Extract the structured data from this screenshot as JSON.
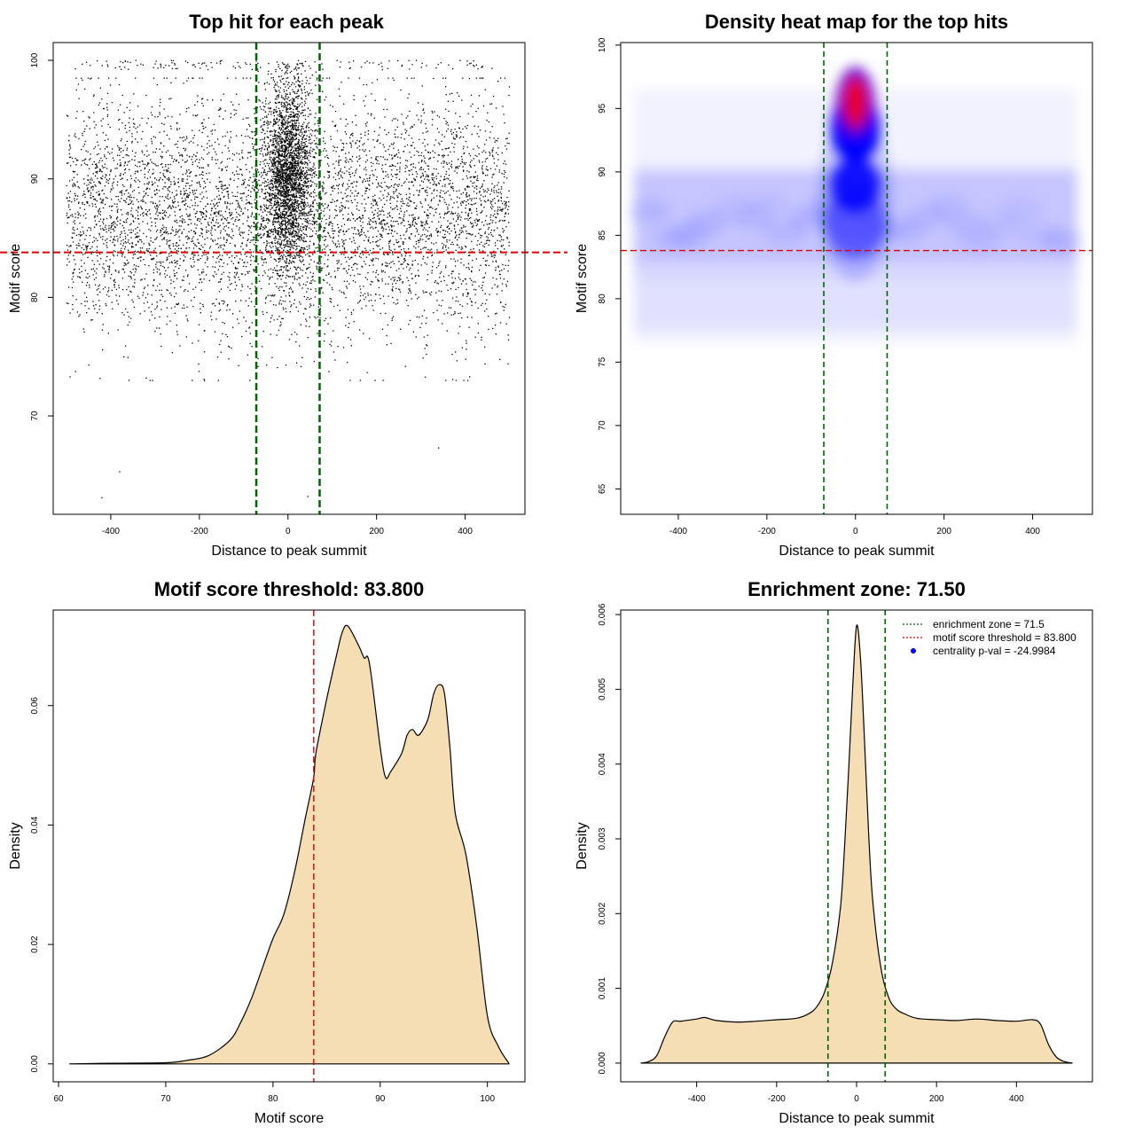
{
  "chart_data": [
    {
      "type": "scatter",
      "title": "Top hit for each peak",
      "xlabel": "Distance to peak summit",
      "ylabel": "Motif score",
      "xlim": [
        -530,
        535
      ],
      "ylim": [
        61.7,
        101.5
      ],
      "xticks": [
        -400,
        -200,
        0,
        200,
        400
      ],
      "xtick_labels": [
        "-400",
        "-200",
        "0",
        "200",
        "400"
      ],
      "yticks": [
        70,
        80,
        90,
        100
      ],
      "ytick_labels": [
        "70",
        "80",
        "90",
        "100"
      ],
      "enrichment_zone_bounds": [
        -71.5,
        71.5
      ],
      "score_threshold": 83.8,
      "colors": {
        "points": "#000000",
        "zone": "#006400",
        "threshold": "#dd0000"
      },
      "point_distribution": {
        "x_range": [
          -500,
          500
        ],
        "central_cluster": {
          "x_sd": 27,
          "y_mean": 90.5,
          "y_sd": 4.0,
          "y_max": 99.9
        },
        "background": {
          "y_mean": 87,
          "y_sd": 4.8,
          "y_range": [
            73,
            98.5
          ]
        },
        "outliers": [
          {
            "x": -420,
            "y": 63.1
          },
          {
            "x": -380,
            "y": 65.3
          },
          {
            "x": 45,
            "y": 63.2
          },
          {
            "x": 340,
            "y": 67.3
          },
          {
            "x": -492,
            "y": 73.3
          },
          {
            "x": -320,
            "y": 73.2
          },
          {
            "x": 410,
            "y": 73.3
          },
          {
            "x": 497,
            "y": 74.4
          }
        ]
      }
    },
    {
      "type": "heatmap",
      "title": "Density heat map for the top hits",
      "xlabel": "Distance to peak summit",
      "ylabel": "Motif score",
      "xlim": [
        -530,
        535
      ],
      "ylim": [
        63,
        100.2
      ],
      "xticks": [
        -400,
        -200,
        0,
        200,
        400
      ],
      "xtick_labels": [
        "-400",
        "-200",
        "0",
        "200",
        "400"
      ],
      "yticks": [
        65,
        70,
        75,
        80,
        85,
        90,
        95,
        100
      ],
      "ytick_labels": [
        "65",
        "70",
        "75",
        "80",
        "85",
        "90",
        "95",
        "100"
      ],
      "enrichment_zone_bounds": [
        -71.5,
        71.5
      ],
      "score_threshold": 83.8,
      "color_scale": [
        "#ffffff",
        "#0000ff",
        "#ff0000"
      ],
      "colors": {
        "zone": "#006400",
        "threshold": "#dd0000"
      },
      "hotspots": [
        {
          "x": 0,
          "y": 95.5,
          "weight": 1.0
        },
        {
          "x": 0,
          "y": 89,
          "weight": 0.6
        },
        {
          "x": 0,
          "y": 86,
          "weight": 0.3
        }
      ]
    },
    {
      "type": "area",
      "title": "Motif score threshold: 83.800",
      "xlabel": "Motif score",
      "ylabel": "Density",
      "xlim": [
        59.5,
        103.5
      ],
      "ylim": [
        -0.003,
        0.076
      ],
      "xticks": [
        60,
        70,
        80,
        90,
        100
      ],
      "xtick_labels": [
        "60",
        "70",
        "80",
        "90",
        "100"
      ],
      "yticks": [
        0.0,
        0.02,
        0.04,
        0.06
      ],
      "ytick_labels": [
        "0.00",
        "0.02",
        "0.04",
        "0.06"
      ],
      "threshold": 83.8,
      "colors": {
        "fill": "#f5deb3",
        "line": "#000000",
        "threshold": "#dd0000"
      },
      "x": [
        61,
        65,
        70,
        72,
        74,
        76,
        77,
        78,
        79,
        80,
        81,
        82,
        83,
        83.8,
        84,
        85,
        86,
        86.5,
        87,
        88,
        88.5,
        89,
        90,
        90.5,
        91,
        92,
        92.5,
        93,
        93.5,
        94,
        94.5,
        95,
        95.5,
        96,
        96.5,
        97,
        98,
        99,
        100,
        101,
        102
      ],
      "values": [
        0.0,
        0.0001,
        0.0002,
        0.0006,
        0.0014,
        0.004,
        0.007,
        0.011,
        0.016,
        0.021,
        0.025,
        0.032,
        0.041,
        0.048,
        0.052,
        0.061,
        0.069,
        0.0725,
        0.0733,
        0.07,
        0.068,
        0.067,
        0.053,
        0.048,
        0.049,
        0.052,
        0.055,
        0.056,
        0.055,
        0.056,
        0.058,
        0.062,
        0.0635,
        0.062,
        0.053,
        0.042,
        0.035,
        0.023,
        0.008,
        0.003,
        0.0001
      ]
    },
    {
      "type": "area",
      "title": "Enrichment zone: 71.50",
      "xlabel": "Distance to peak summit",
      "ylabel": "Density",
      "xlim": [
        -590,
        590
      ],
      "ylim": [
        -0.00025,
        0.00606
      ],
      "xticks": [
        -400,
        -200,
        0,
        200,
        400
      ],
      "xtick_labels": [
        "-400",
        "-200",
        "0",
        "200",
        "400"
      ],
      "yticks": [
        0.0,
        0.001,
        0.002,
        0.003,
        0.004,
        0.005,
        0.006
      ],
      "ytick_labels": [
        "0.000",
        "0.001",
        "0.002",
        "0.003",
        "0.004",
        "0.005",
        "0.006"
      ],
      "enrichment_zone_bounds": [
        -71.5,
        71.5
      ],
      "colors": {
        "fill": "#f5deb3",
        "line": "#000000",
        "zone": "#006400",
        "threshold": "#dd0000",
        "pval": "#0000ff"
      },
      "x": [
        -540,
        -520,
        -500,
        -480,
        -460,
        -440,
        -400,
        -380,
        -350,
        -300,
        -250,
        -200,
        -150,
        -120,
        -100,
        -80,
        -60,
        -40,
        -30,
        -20,
        -10,
        0,
        10,
        20,
        30,
        40,
        60,
        80,
        100,
        120,
        150,
        200,
        250,
        300,
        350,
        400,
        440,
        460,
        480,
        500,
        520,
        540
      ],
      "values": [
        0.0,
        2e-05,
        0.0001,
        0.00035,
        0.00055,
        0.00056,
        0.00059,
        0.00061,
        0.00057,
        0.00055,
        0.00056,
        0.00058,
        0.0006,
        0.00066,
        0.00075,
        0.00095,
        0.00135,
        0.0021,
        0.0029,
        0.0039,
        0.005,
        0.00585,
        0.0054,
        0.0043,
        0.0031,
        0.0022,
        0.0013,
        0.00088,
        0.00072,
        0.00066,
        0.0006,
        0.00058,
        0.00057,
        0.00059,
        0.00057,
        0.00056,
        0.00058,
        0.00052,
        0.00025,
        8e-05,
        2e-05,
        0.0
      ],
      "legend": {
        "position": "top-right",
        "entries": [
          {
            "label": "enrichment zone = 71.5",
            "kind": "dotted-line",
            "color": "#006400"
          },
          {
            "label": "motif score threshold = 83.800",
            "kind": "dotted-line",
            "color": "#dd0000"
          },
          {
            "label": "centrality p-val = -24.9984",
            "kind": "point",
            "color": "#0000ff"
          }
        ]
      }
    }
  ]
}
